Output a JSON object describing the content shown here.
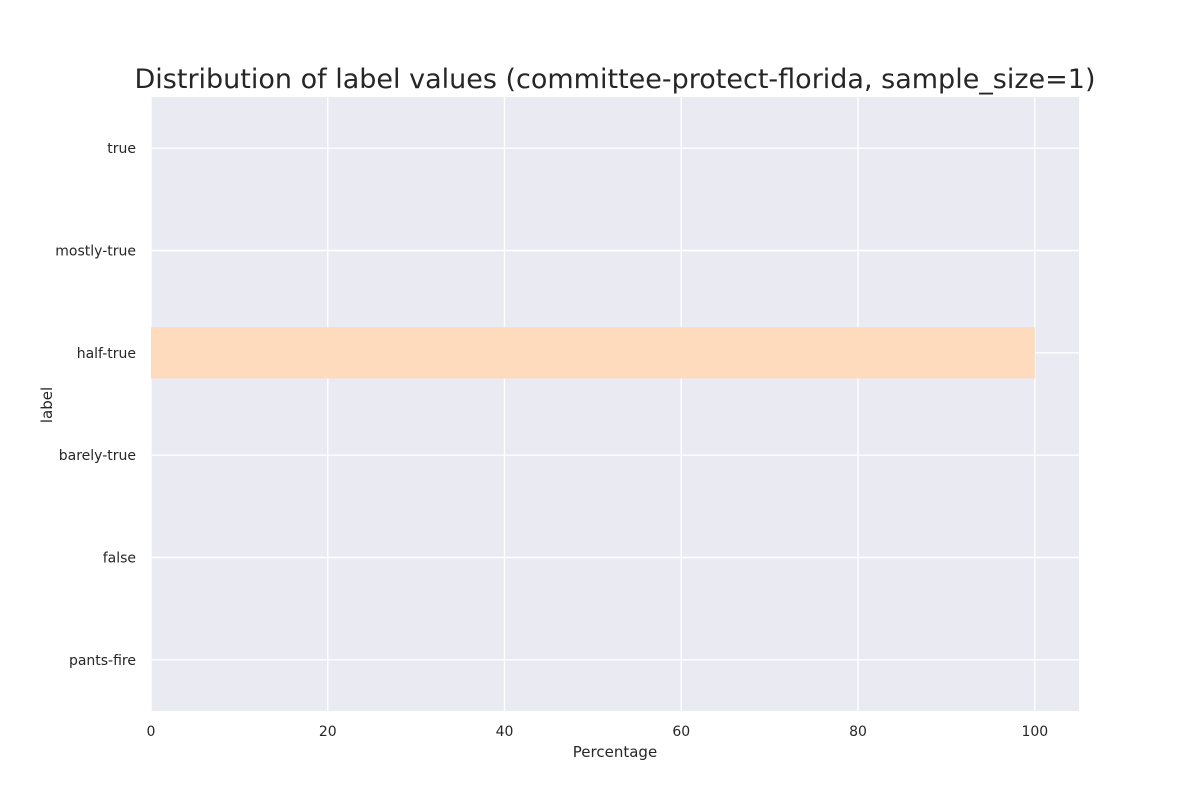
{
  "chart_data": {
    "type": "bar",
    "orientation": "horizontal",
    "title": "Distribution of label values (committee-protect-florida, sample_size=1)",
    "xlabel": "Percentage",
    "ylabel": "label",
    "categories": [
      "true",
      "mostly-true",
      "half-true",
      "barely-true",
      "false",
      "pants-fire"
    ],
    "values": [
      0,
      0,
      100,
      0,
      0,
      0
    ],
    "xlim": [
      0,
      105
    ],
    "xticks": [
      0,
      20,
      40,
      60,
      80,
      100
    ],
    "grid": true,
    "legend": "none",
    "colors": {
      "background": "#EAEAF2",
      "grid": "#FFFFFF",
      "bar": "#FDDBBC",
      "text": "#262626"
    }
  }
}
